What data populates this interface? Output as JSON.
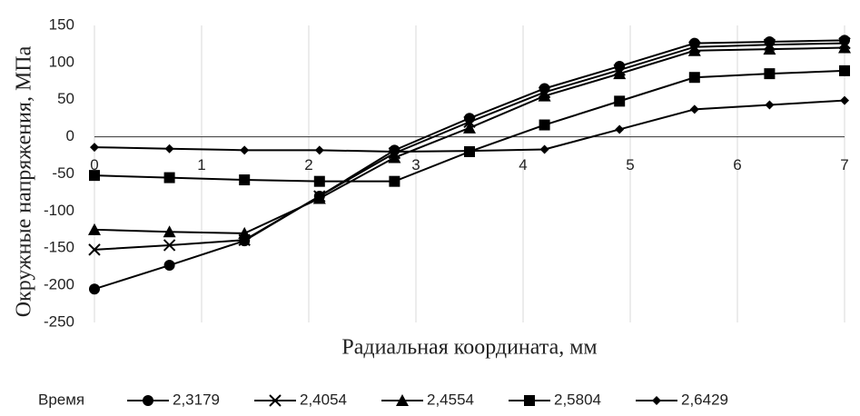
{
  "chart_data": {
    "type": "line",
    "x_label": "Радиальная координата, мм",
    "y_label": "Окружные напряжения, МПа",
    "legend_title": "Время",
    "x": [
      0,
      0.7,
      1.4,
      2.1,
      2.8,
      3.5,
      4.2,
      4.9,
      5.6,
      6.3,
      7
    ],
    "xlim": [
      0,
      7
    ],
    "xticks": [
      0,
      1,
      2,
      3,
      4,
      5,
      6,
      7
    ],
    "ylim": [
      -250,
      150
    ],
    "yticks": [
      150,
      100,
      50,
      0,
      -50,
      -100,
      -150,
      -200,
      -250
    ],
    "grid": true,
    "series": [
      {
        "name": "2,3179",
        "color": "#000000",
        "marker": "circle",
        "values": [
          -205,
          -173,
          -140,
          -80,
          -18,
          25,
          65,
          95,
          126,
          128,
          130
        ]
      },
      {
        "name": "2,4054",
        "color": "#000000",
        "marker": "x",
        "values": [
          -152,
          -146,
          -139,
          -80,
          -22,
          20,
          60,
          90,
          121,
          124,
          126
        ]
      },
      {
        "name": "2,4554",
        "color": "#000000",
        "marker": "triangle",
        "values": [
          -125,
          -128,
          -130,
          -83,
          -28,
          12,
          55,
          85,
          116,
          118,
          120
        ]
      },
      {
        "name": "2,5804",
        "color": "#000000",
        "marker": "square",
        "values": [
          -52,
          -55,
          -58,
          -60,
          -60,
          -20,
          16,
          48,
          80,
          85,
          89
        ]
      },
      {
        "name": "2,6429",
        "color": "#000000",
        "marker": "diamond",
        "values": [
          -14,
          -16,
          -18,
          -18,
          -20,
          -19,
          -17,
          10,
          37,
          43,
          49
        ]
      }
    ]
  }
}
